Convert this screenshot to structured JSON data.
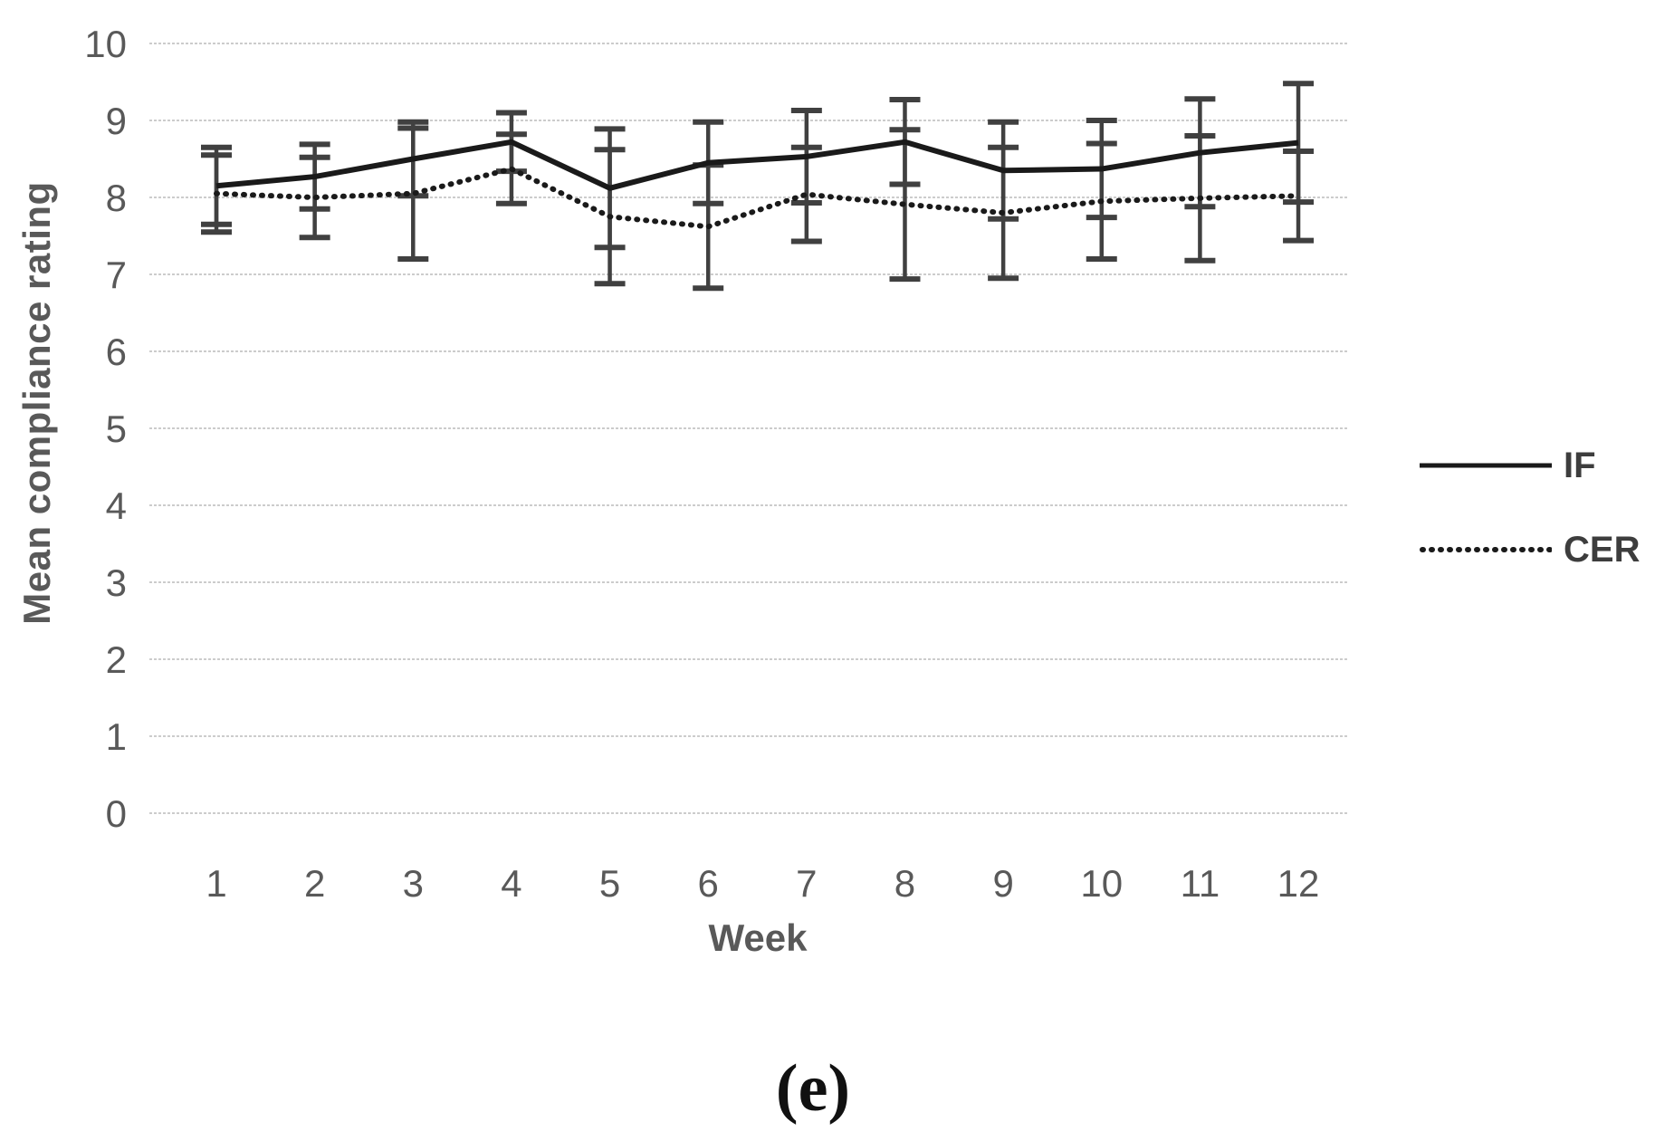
{
  "figure": {
    "caption": "(e)",
    "background": "#ffffff"
  },
  "chart_data": {
    "type": "line",
    "title": "",
    "xlabel": "Week",
    "ylabel": "Mean compliance rating",
    "x": [
      1,
      2,
      3,
      4,
      5,
      6,
      7,
      8,
      9,
      10,
      11,
      12
    ],
    "ylim": [
      0,
      10
    ],
    "y_ticks": [
      0,
      1,
      2,
      3,
      4,
      5,
      6,
      7,
      8,
      9,
      10
    ],
    "grid": true,
    "legend_position": "right",
    "series": [
      {
        "name": "IF",
        "line_style": "solid",
        "color": "#1a1a1a",
        "values": [
          8.15,
          8.27,
          8.5,
          8.72,
          8.12,
          8.45,
          8.53,
          8.72,
          8.35,
          8.37,
          8.58,
          8.71
        ],
        "error_bars": [
          0.5,
          0.42,
          0.48,
          0.38,
          0.77,
          0.53,
          0.6,
          0.55,
          0.63,
          0.63,
          0.7,
          0.77
        ]
      },
      {
        "name": "CER",
        "line_style": "dotted",
        "color": "#1a1a1a",
        "values": [
          8.05,
          8.0,
          8.05,
          8.37,
          7.75,
          7.62,
          8.04,
          7.91,
          7.8,
          7.95,
          7.99,
          8.02
        ],
        "error_bars": [
          0.5,
          0.52,
          0.85,
          0.45,
          0.87,
          0.8,
          0.61,
          0.97,
          0.85,
          0.75,
          0.81,
          0.58
        ]
      }
    ]
  },
  "colors": {
    "axis_text": "#595959",
    "gridline": "#cccccc",
    "series_line": "#1a1a1a",
    "error_bar": "#404040"
  }
}
